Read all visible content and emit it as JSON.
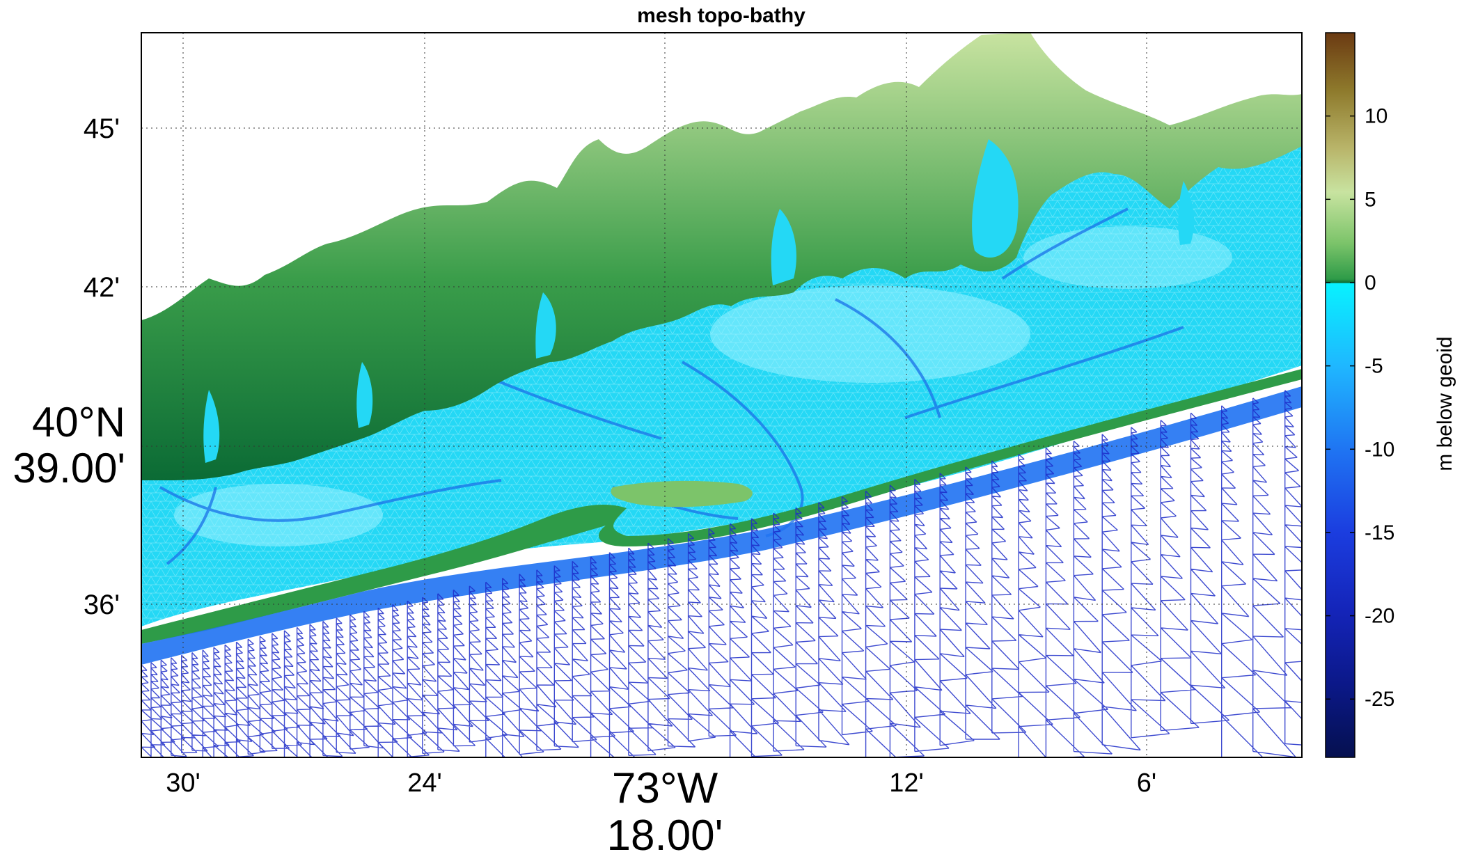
{
  "title": "mesh topo-bathy",
  "axes": {
    "x_ticks": [
      {
        "label": "30'",
        "sub": "",
        "big": false
      },
      {
        "label": "24'",
        "sub": "",
        "big": false
      },
      {
        "label": "73°W",
        "sub": "18.00'",
        "big": true
      },
      {
        "label": "12'",
        "sub": "",
        "big": false
      },
      {
        "label": "6'",
        "sub": "",
        "big": false
      }
    ],
    "y_ticks": [
      {
        "label": "45'",
        "sub": "",
        "big": false
      },
      {
        "label": "42'",
        "sub": "",
        "big": false
      },
      {
        "label": "40°N",
        "sub": "39.00'",
        "big": true
      },
      {
        "label": "36'",
        "sub": "",
        "big": false
      }
    ]
  },
  "colorbar": {
    "label": "m below geoid",
    "min": -28.5,
    "max": 15,
    "ticks": [
      "10",
      "5",
      "0",
      "-5",
      "-10",
      "-15",
      "-20",
      "-25"
    ],
    "land_colors": [
      "#0b6b35",
      "#2e9b48",
      "#7cc46a",
      "#c8e3a0",
      "#b9b56a",
      "#8e7a2c",
      "#6b3a12"
    ],
    "water_colors": [
      "#08f2ff",
      "#1fb7ff",
      "#1f72f2",
      "#1b3ddf",
      "#1424b8",
      "#0b1888",
      "#05104f"
    ]
  },
  "map_colors": {
    "lagoon": "#24d8f5",
    "channel": "#1a70e8",
    "land_low": "#2e9b48",
    "land_high": "#c8e3a0",
    "mesh_line": "#1c2cc8",
    "mesh_line_dark": "#10187a",
    "frame": "#000000",
    "grid": "#333333"
  }
}
